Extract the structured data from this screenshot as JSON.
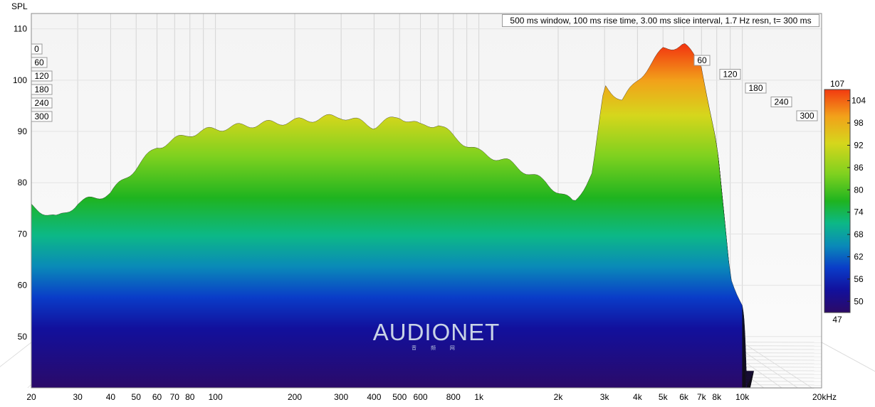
{
  "chart_data": {
    "type": "waterfall",
    "title": "",
    "ylabel": "SPL",
    "xlabel": "",
    "info_text": "500 ms window, 100 ms rise time, 3.00 ms slice interval, 1.7 Hz resn, t= 300 ms",
    "x_scale": "log",
    "xlim": [
      20,
      20000
    ],
    "ylim": [
      40,
      113
    ],
    "x_ticks": [
      {
        "value": 20,
        "label": "20"
      },
      {
        "value": 30,
        "label": "30"
      },
      {
        "value": 40,
        "label": "40"
      },
      {
        "value": 50,
        "label": "50"
      },
      {
        "value": 60,
        "label": "60"
      },
      {
        "value": 70,
        "label": "70"
      },
      {
        "value": 80,
        "label": "80"
      },
      {
        "value": 100,
        "label": "100"
      },
      {
        "value": 200,
        "label": "200"
      },
      {
        "value": 300,
        "label": "300"
      },
      {
        "value": 400,
        "label": "400"
      },
      {
        "value": 500,
        "label": "500"
      },
      {
        "value": 600,
        "label": "600"
      },
      {
        "value": 800,
        "label": "800"
      },
      {
        "value": 1000,
        "label": "1k"
      },
      {
        "value": 2000,
        "label": "2k"
      },
      {
        "value": 3000,
        "label": "3k"
      },
      {
        "value": 4000,
        "label": "4k"
      },
      {
        "value": 5000,
        "label": "5k"
      },
      {
        "value": 6000,
        "label": "6k"
      },
      {
        "value": 7000,
        "label": "7k"
      },
      {
        "value": 8000,
        "label": "8k"
      },
      {
        "value": 10000,
        "label": "10k"
      },
      {
        "value": 20000,
        "label": "20kHz"
      }
    ],
    "y_ticks": [
      {
        "value": 50,
        "label": "50"
      },
      {
        "value": 60,
        "label": "60"
      },
      {
        "value": 70,
        "label": "70"
      },
      {
        "value": 80,
        "label": "80"
      },
      {
        "value": 90,
        "label": "90"
      },
      {
        "value": 100,
        "label": "100"
      },
      {
        "value": 110,
        "label": "110"
      }
    ],
    "time_ticks_left": [
      "0",
      "60",
      "120",
      "180",
      "240",
      "300"
    ],
    "time_ticks_right": [
      "60",
      "120",
      "180",
      "240",
      "300"
    ],
    "time_range_ms": [
      0,
      300
    ],
    "slice_count": 100,
    "colorbar": {
      "min": 47,
      "max": 107,
      "min_label": "47",
      "max_label": "107",
      "ticks": [
        {
          "value": 104,
          "label": "104"
        },
        {
          "value": 98,
          "label": "98"
        },
        {
          "value": 92,
          "label": "92"
        },
        {
          "value": 86,
          "label": "86"
        },
        {
          "value": 80,
          "label": "80"
        },
        {
          "value": 74,
          "label": "74"
        },
        {
          "value": 68,
          "label": "68"
        },
        {
          "value": 62,
          "label": "62"
        },
        {
          "value": 56,
          "label": "56"
        },
        {
          "value": 50,
          "label": "50"
        }
      ],
      "colors": [
        "#2c0a66",
        "#10109a",
        "#0a3cc8",
        "#0a8ab8",
        "#0cb887",
        "#1fb41f",
        "#7ed11f",
        "#d6d61c",
        "#f2a11a",
        "#f23a10"
      ]
    },
    "first_slice_response": [
      {
        "f": 20,
        "db": 75.5
      },
      {
        "f": 25,
        "db": 73
      },
      {
        "f": 30,
        "db": 76
      },
      {
        "f": 40,
        "db": 78
      },
      {
        "f": 50,
        "db": 83
      },
      {
        "f": 60,
        "db": 87
      },
      {
        "f": 80,
        "db": 89.5
      },
      {
        "f": 100,
        "db": 90.5
      },
      {
        "f": 150,
        "db": 91.5
      },
      {
        "f": 200,
        "db": 92
      },
      {
        "f": 300,
        "db": 93
      },
      {
        "f": 400,
        "db": 91
      },
      {
        "f": 500,
        "db": 93
      },
      {
        "f": 600,
        "db": 91
      },
      {
        "f": 700,
        "db": 91.5
      },
      {
        "f": 800,
        "db": 89
      },
      {
        "f": 1000,
        "db": 86
      },
      {
        "f": 1300,
        "db": 84
      },
      {
        "f": 1800,
        "db": 80
      },
      {
        "f": 2300,
        "db": 76
      },
      {
        "f": 2700,
        "db": 82
      },
      {
        "f": 3000,
        "db": 99
      },
      {
        "f": 3500,
        "db": 96
      },
      {
        "f": 4000,
        "db": 100
      },
      {
        "f": 5000,
        "db": 106
      },
      {
        "f": 6000,
        "db": 107
      },
      {
        "f": 7000,
        "db": 103
      },
      {
        "f": 8000,
        "db": 87
      },
      {
        "f": 9000,
        "db": 62
      },
      {
        "f": 10000,
        "db": 56
      }
    ]
  },
  "watermark": {
    "main": "AUDIONET",
    "sub": "音 频 网"
  }
}
